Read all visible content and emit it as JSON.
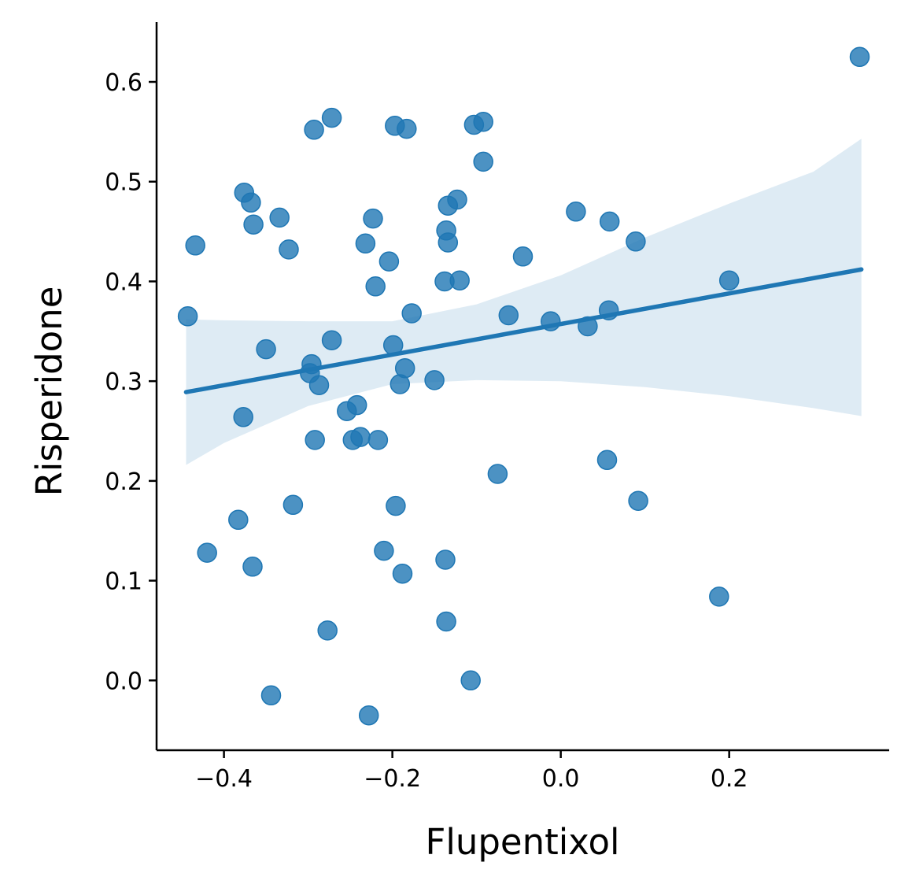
{
  "chart_data": {
    "type": "scatter",
    "title": "",
    "xlabel": "Flupentixol",
    "ylabel": "Risperidone",
    "xlim": [
      -0.48,
      0.39
    ],
    "ylim": [
      -0.07,
      0.66
    ],
    "xticks": [
      -0.4,
      -0.2,
      0.0,
      0.2
    ],
    "xtick_labels": [
      "−0.4",
      "−0.2",
      "0.0",
      "0.2"
    ],
    "yticks": [
      0.0,
      0.1,
      0.2,
      0.3,
      0.4,
      0.5,
      0.6
    ],
    "ytick_labels": [
      "0.0",
      "0.1",
      "0.2",
      "0.3",
      "0.4",
      "0.5",
      "0.6"
    ],
    "grid": false,
    "colors": {
      "points": "#1f77b4",
      "regression_line": "#1f77b4",
      "confidence_band": "#1f77b4"
    },
    "points": [
      {
        "x": 0.355,
        "y": 0.625
      },
      {
        "x": -0.272,
        "y": 0.564
      },
      {
        "x": -0.293,
        "y": 0.552
      },
      {
        "x": -0.197,
        "y": 0.556
      },
      {
        "x": -0.183,
        "y": 0.553
      },
      {
        "x": -0.103,
        "y": 0.557
      },
      {
        "x": -0.092,
        "y": 0.56
      },
      {
        "x": -0.092,
        "y": 0.52
      },
      {
        "x": -0.376,
        "y": 0.489
      },
      {
        "x": -0.368,
        "y": 0.479
      },
      {
        "x": -0.123,
        "y": 0.482
      },
      {
        "x": -0.134,
        "y": 0.476
      },
      {
        "x": 0.018,
        "y": 0.47
      },
      {
        "x": -0.334,
        "y": 0.464
      },
      {
        "x": -0.223,
        "y": 0.463
      },
      {
        "x": 0.058,
        "y": 0.46
      },
      {
        "x": -0.365,
        "y": 0.457
      },
      {
        "x": -0.136,
        "y": 0.451
      },
      {
        "x": -0.434,
        "y": 0.436
      },
      {
        "x": -0.232,
        "y": 0.438
      },
      {
        "x": -0.134,
        "y": 0.439
      },
      {
        "x": 0.089,
        "y": 0.44
      },
      {
        "x": -0.323,
        "y": 0.432
      },
      {
        "x": -0.045,
        "y": 0.425
      },
      {
        "x": -0.204,
        "y": 0.42
      },
      {
        "x": -0.138,
        "y": 0.4
      },
      {
        "x": -0.12,
        "y": 0.401
      },
      {
        "x": 0.2,
        "y": 0.401
      },
      {
        "x": -0.22,
        "y": 0.395
      },
      {
        "x": -0.177,
        "y": 0.368
      },
      {
        "x": -0.443,
        "y": 0.365
      },
      {
        "x": -0.062,
        "y": 0.366
      },
      {
        "x": 0.057,
        "y": 0.371
      },
      {
        "x": -0.012,
        "y": 0.36
      },
      {
        "x": 0.032,
        "y": 0.355
      },
      {
        "x": -0.272,
        "y": 0.341
      },
      {
        "x": -0.35,
        "y": 0.332
      },
      {
        "x": -0.199,
        "y": 0.336
      },
      {
        "x": -0.296,
        "y": 0.317
      },
      {
        "x": -0.298,
        "y": 0.308
      },
      {
        "x": -0.185,
        "y": 0.313
      },
      {
        "x": -0.15,
        "y": 0.301
      },
      {
        "x": -0.287,
        "y": 0.296
      },
      {
        "x": -0.191,
        "y": 0.297
      },
      {
        "x": -0.254,
        "y": 0.27
      },
      {
        "x": -0.242,
        "y": 0.276
      },
      {
        "x": -0.377,
        "y": 0.264
      },
      {
        "x": -0.292,
        "y": 0.241
      },
      {
        "x": -0.247,
        "y": 0.241
      },
      {
        "x": -0.238,
        "y": 0.244
      },
      {
        "x": -0.217,
        "y": 0.241
      },
      {
        "x": 0.055,
        "y": 0.221
      },
      {
        "x": -0.075,
        "y": 0.207
      },
      {
        "x": -0.318,
        "y": 0.176
      },
      {
        "x": -0.196,
        "y": 0.175
      },
      {
        "x": 0.092,
        "y": 0.18
      },
      {
        "x": -0.383,
        "y": 0.161
      },
      {
        "x": -0.42,
        "y": 0.128
      },
      {
        "x": -0.21,
        "y": 0.13
      },
      {
        "x": -0.366,
        "y": 0.114
      },
      {
        "x": -0.188,
        "y": 0.107
      },
      {
        "x": -0.137,
        "y": 0.121
      },
      {
        "x": 0.188,
        "y": 0.084
      },
      {
        "x": -0.277,
        "y": 0.05
      },
      {
        "x": -0.136,
        "y": 0.059
      },
      {
        "x": -0.107,
        "y": 0.0
      },
      {
        "x": -0.344,
        "y": -0.015
      },
      {
        "x": -0.228,
        "y": -0.035
      }
    ],
    "regression_line": {
      "x": [
        -0.445,
        0.357
      ],
      "y": [
        0.289,
        0.412
      ]
    },
    "confidence_band": {
      "x": [
        -0.445,
        -0.4,
        -0.3,
        -0.2,
        -0.1,
        0.0,
        0.1,
        0.2,
        0.3,
        0.357
      ],
      "lower": [
        0.216,
        0.238,
        0.275,
        0.297,
        0.301,
        0.3,
        0.294,
        0.285,
        0.273,
        0.265
      ],
      "upper": [
        0.362,
        0.361,
        0.36,
        0.36,
        0.377,
        0.406,
        0.444,
        0.478,
        0.51,
        0.543
      ]
    }
  }
}
